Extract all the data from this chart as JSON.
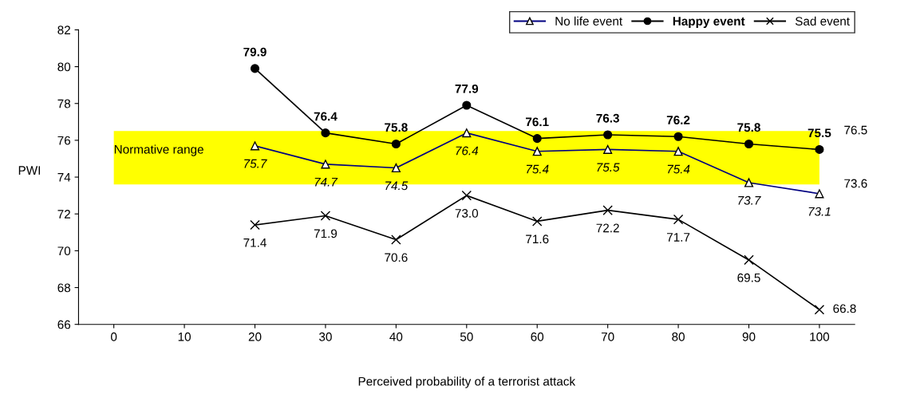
{
  "chart_data": {
    "type": "line",
    "xlabel": "Perceived probability of a terrorist attack",
    "ylabel": "PWI",
    "categories": [
      "0",
      "10",
      "20",
      "30",
      "40",
      "50",
      "60",
      "70",
      "80",
      "90",
      "100"
    ],
    "series": [
      {
        "name": "No life event",
        "color": "#000080",
        "marker": "triangle",
        "values": [
          null,
          null,
          75.7,
          74.7,
          74.5,
          76.4,
          75.4,
          75.5,
          75.4,
          73.7,
          73.1
        ],
        "value_labels": [
          null,
          null,
          "75.7",
          "74.7",
          "74.5",
          "76.4",
          "75.4",
          "75.5",
          "75.4",
          "73.7",
          "73.1"
        ]
      },
      {
        "name": "Happy event",
        "color": "#000000",
        "marker": "circle",
        "values": [
          null,
          null,
          79.9,
          76.4,
          75.8,
          77.9,
          76.1,
          76.3,
          76.2,
          75.8,
          75.5
        ],
        "value_labels": [
          null,
          null,
          "79.9",
          "76.4",
          "75.8",
          "77.9",
          "76.1",
          "76.3",
          "76.2",
          "75.8",
          "75.5"
        ]
      },
      {
        "name": "Sad event",
        "color": "#000000",
        "marker": "cross",
        "values": [
          null,
          null,
          71.4,
          71.9,
          70.6,
          73.0,
          71.6,
          72.2,
          71.7,
          69.5,
          66.8
        ],
        "value_labels": [
          null,
          null,
          "71.4",
          "71.9",
          "70.6",
          "73.0",
          "71.6",
          "72.2",
          "71.7",
          "69.5",
          "66.8"
        ]
      }
    ],
    "bands": [
      {
        "axis": "y",
        "from": 73.6,
        "to": 76.5,
        "label": "Normative range",
        "color": "#ffff00"
      }
    ],
    "annotations": [
      {
        "text": "76.5",
        "x": "100",
        "y": 76.5
      },
      {
        "text": "73.6",
        "x": "100",
        "y": 73.6
      }
    ],
    "ylim": [
      66,
      82
    ],
    "yticks": [
      66,
      68,
      70,
      72,
      74,
      76,
      78,
      80,
      82
    ],
    "grid": false,
    "legend": "top right",
    "line_style": "solid"
  }
}
